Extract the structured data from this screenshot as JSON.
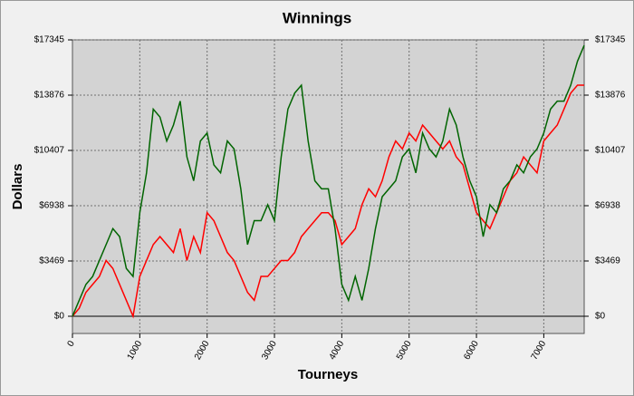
{
  "chart_data": {
    "type": "line",
    "title": "Winnings",
    "x_label": "Tourneys",
    "y_label": "Dollars",
    "x": [
      0,
      100,
      200,
      300,
      400,
      500,
      600,
      700,
      800,
      900,
      1000,
      1100,
      1200,
      1300,
      1400,
      1500,
      1600,
      1700,
      1800,
      1900,
      2000,
      2100,
      2200,
      2300,
      2400,
      2500,
      2600,
      2700,
      2800,
      2900,
      3000,
      3100,
      3200,
      3300,
      3400,
      3500,
      3600,
      3700,
      3800,
      3900,
      4000,
      4100,
      4200,
      4300,
      4400,
      4500,
      4600,
      4700,
      4800,
      4900,
      5000,
      5100,
      5200,
      5300,
      5400,
      5500,
      5600,
      5700,
      5800,
      5900,
      6000,
      6100,
      6200,
      6300,
      6400,
      6500,
      6600,
      6700,
      6800,
      6900,
      7000,
      7100,
      7200,
      7300,
      7400,
      7500,
      7600
    ],
    "series": [
      {
        "color": "#ff0000",
        "values": [
          0,
          500,
          1500,
          2000,
          2500,
          3500,
          3000,
          2000,
          1000,
          0,
          2500,
          3500,
          4500,
          5000,
          4500,
          4000,
          5500,
          3500,
          5000,
          4000,
          6500,
          6000,
          5000,
          4000,
          3500,
          2500,
          1500,
          1000,
          2500,
          2500,
          3000,
          3500,
          3500,
          4000,
          5000,
          5500,
          6000,
          6500,
          6500,
          6000,
          4500,
          5000,
          5500,
          7000,
          8000,
          7500,
          8500,
          10000,
          11000,
          10500,
          11500,
          11000,
          12000,
          11500,
          11000,
          10500,
          11000,
          10000,
          9500,
          8000,
          6500,
          6000,
          5500,
          6500,
          7500,
          8500,
          9000,
          10000,
          9500,
          9000,
          11000,
          11500,
          12000,
          13000,
          14000,
          14500,
          14500
        ]
      },
      {
        "color": "#006400",
        "values": [
          0,
          1000,
          2000,
          2500,
          3500,
          4500,
          5500,
          5000,
          3000,
          2500,
          6500,
          9000,
          13000,
          12500,
          11000,
          12000,
          13500,
          10000,
          8500,
          11000,
          11500,
          9500,
          9000,
          11000,
          10500,
          8000,
          4500,
          6000,
          6000,
          7000,
          6000,
          10000,
          13000,
          14000,
          14500,
          11000,
          8500,
          8000,
          8000,
          5500,
          2000,
          1000,
          2500,
          1000,
          3000,
          5500,
          7500,
          8000,
          8500,
          10000,
          10500,
          9000,
          11500,
          10500,
          10000,
          11000,
          13000,
          12000,
          10000,
          8500,
          7500,
          5000,
          7000,
          6500,
          8000,
          8500,
          9500,
          9000,
          10000,
          10500,
          11500,
          13000,
          13500,
          13500,
          14500,
          16000,
          17000
        ]
      }
    ],
    "xlim": [
      0,
      7600
    ],
    "ylim": [
      -1080,
      17345
    ],
    "xticks": [
      0,
      1000,
      2000,
      3000,
      4000,
      5000,
      6000,
      7000
    ],
    "yticks": [
      {
        "value": 0,
        "label": "$0"
      },
      {
        "value": 3469,
        "label": "$3469"
      },
      {
        "value": 6938,
        "label": "$6938"
      },
      {
        "value": 10407,
        "label": "$10407"
      },
      {
        "value": 13876,
        "label": "$13876"
      },
      {
        "value": 17345,
        "label": "$17345"
      }
    ],
    "grid": true
  }
}
